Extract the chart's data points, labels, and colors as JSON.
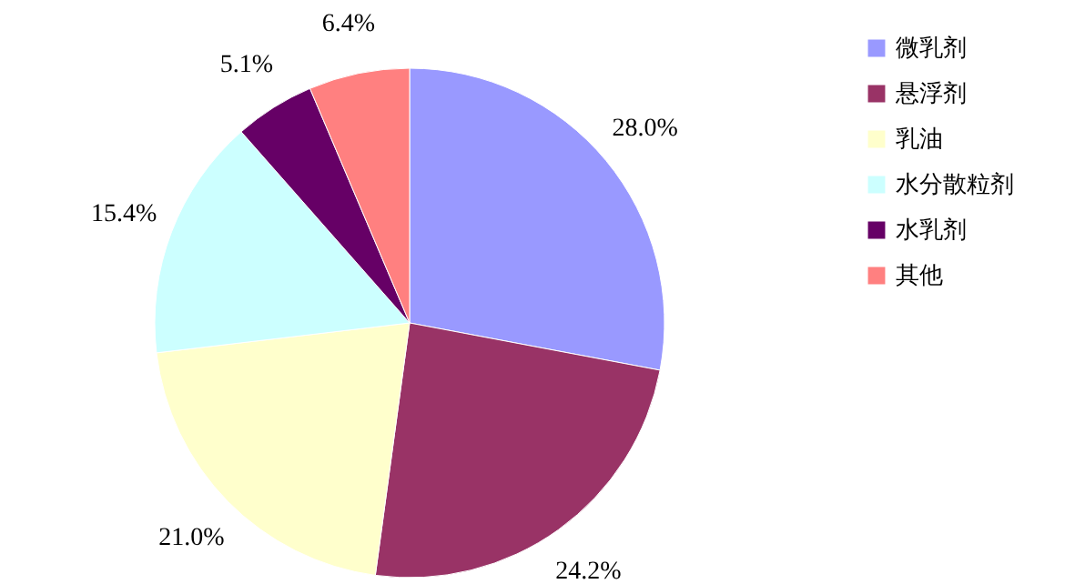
{
  "chart_data": {
    "type": "pie",
    "categories": [
      "微乳剂",
      "悬浮剂",
      "乳油",
      "水分散粒剂",
      "水乳剂",
      "其他"
    ],
    "values": [
      28.0,
      24.2,
      21.0,
      15.4,
      5.1,
      6.4
    ],
    "value_labels": [
      "28.0%",
      "24.2%",
      "21.0%",
      "15.4%",
      "5.1%",
      "6.4%"
    ],
    "colors": [
      "#9999ff",
      "#993366",
      "#ffffcc",
      "#ccffff",
      "#660066",
      "#ff8080"
    ],
    "legend": "right"
  }
}
